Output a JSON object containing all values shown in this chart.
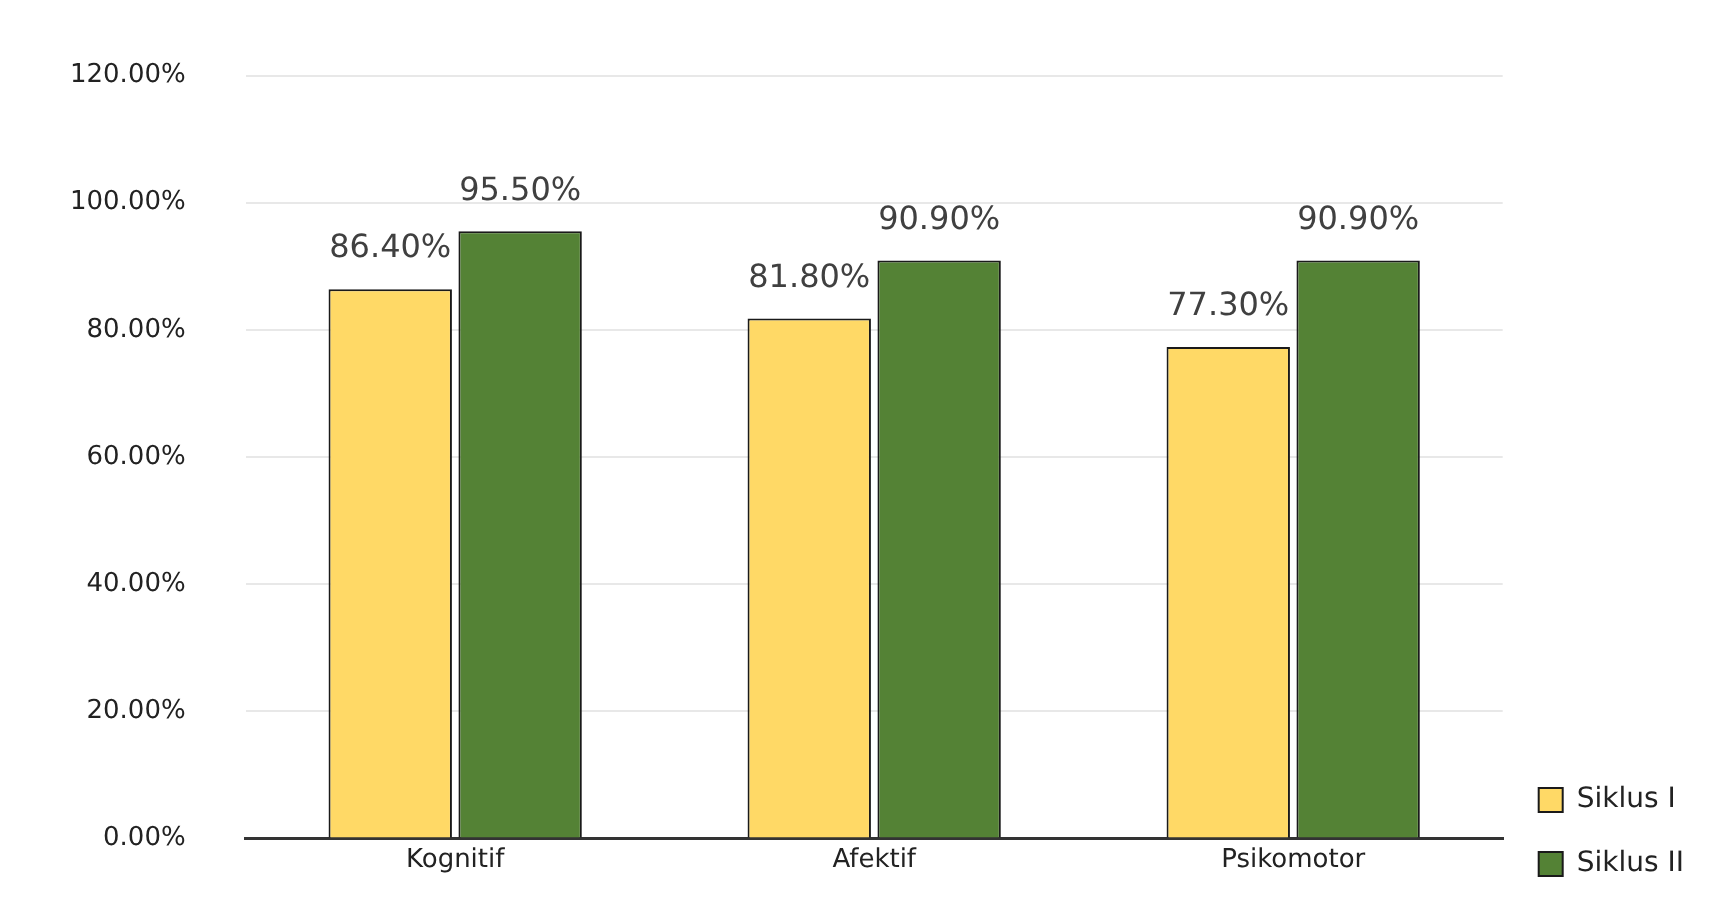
{
  "chart_data": {
    "type": "bar",
    "categories": [
      "Kognitif",
      "Afektif",
      "Psikomotor"
    ],
    "series": [
      {
        "name": "Siklus I",
        "color": "#ffd966",
        "values": [
          86.4,
          81.8,
          77.3
        ],
        "value_labels": [
          "86.40%",
          "81.80%",
          "77.30%"
        ]
      },
      {
        "name": "Siklus II",
        "color": "#548235",
        "values": [
          95.5,
          90.9,
          90.9
        ],
        "value_labels": [
          "95.50%",
          "90.90%",
          "90.90%"
        ]
      }
    ],
    "ylim": [
      0,
      120
    ],
    "yticks": [
      {
        "value": 0,
        "label": "0.00%"
      },
      {
        "value": 20,
        "label": "20.00%"
      },
      {
        "value": 40,
        "label": "40.00%"
      },
      {
        "value": 60,
        "label": "60.00%"
      },
      {
        "value": 80,
        "label": "80.00%"
      },
      {
        "value": 100,
        "label": "100.00%"
      },
      {
        "value": 120,
        "label": "120.00%"
      }
    ],
    "grid": "y",
    "legend": "bottom right"
  }
}
